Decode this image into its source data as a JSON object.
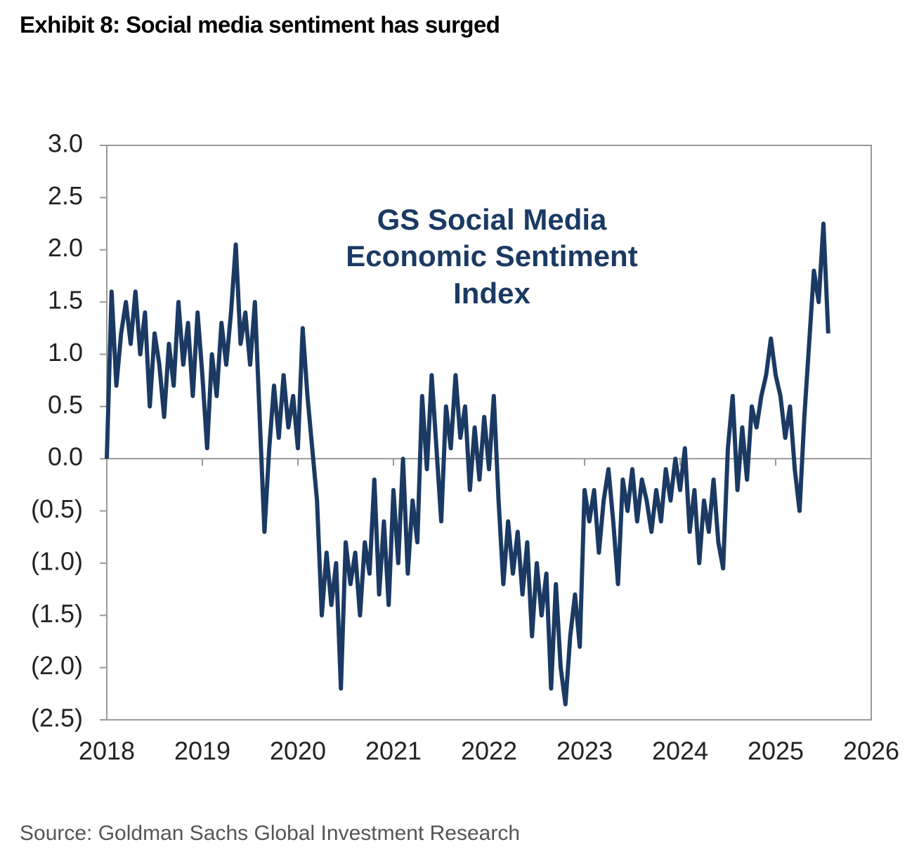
{
  "chart_data": {
    "type": "line",
    "title": "Exhibit 8: Social media sentiment has surged",
    "annotation": [
      "GS Social Media",
      "Economic Sentiment",
      "Index"
    ],
    "source": "Source: Goldman Sachs Global Investment Research",
    "color": "#1b3a63",
    "xlim": [
      2018,
      2026
    ],
    "xticks": [
      2018,
      2019,
      2020,
      2021,
      2022,
      2023,
      2024,
      2025,
      2026
    ],
    "ylim": [
      -2.5,
      3.0
    ],
    "yticks": [
      {
        "value": 3.0,
        "label": "3.0"
      },
      {
        "value": 2.5,
        "label": "2.5"
      },
      {
        "value": 2.0,
        "label": "2.0"
      },
      {
        "value": 1.5,
        "label": "1.5"
      },
      {
        "value": 1.0,
        "label": "1.0"
      },
      {
        "value": 0.5,
        "label": "0.5"
      },
      {
        "value": 0.0,
        "label": "0.0"
      },
      {
        "value": -0.5,
        "label": "(0.5)"
      },
      {
        "value": -1.0,
        "label": "(1.0)"
      },
      {
        "value": -1.5,
        "label": "(1.5)"
      },
      {
        "value": -2.0,
        "label": "(2.0)"
      },
      {
        "value": -2.5,
        "label": "(2.5)"
      }
    ],
    "x": [
      2018.0,
      2018.05,
      2018.1,
      2018.15,
      2018.2,
      2018.25,
      2018.3,
      2018.35,
      2018.4,
      2018.45,
      2018.5,
      2018.55,
      2018.6,
      2018.65,
      2018.7,
      2018.75,
      2018.8,
      2018.85,
      2018.9,
      2018.95,
      2019.0,
      2019.05,
      2019.1,
      2019.15,
      2019.2,
      2019.25,
      2019.3,
      2019.35,
      2019.4,
      2019.45,
      2019.5,
      2019.55,
      2019.6,
      2019.65,
      2019.7,
      2019.75,
      2019.8,
      2019.85,
      2019.9,
      2019.95,
      2020.0,
      2020.05,
      2020.1,
      2020.15,
      2020.2,
      2020.25,
      2020.3,
      2020.35,
      2020.4,
      2020.45,
      2020.5,
      2020.55,
      2020.6,
      2020.65,
      2020.7,
      2020.75,
      2020.8,
      2020.85,
      2020.9,
      2020.95,
      2021.0,
      2021.05,
      2021.1,
      2021.15,
      2021.2,
      2021.25,
      2021.3,
      2021.35,
      2021.4,
      2021.45,
      2021.5,
      2021.55,
      2021.6,
      2021.65,
      2021.7,
      2021.75,
      2021.8,
      2021.85,
      2021.9,
      2021.95,
      2022.0,
      2022.05,
      2022.1,
      2022.15,
      2022.2,
      2022.25,
      2022.3,
      2022.35,
      2022.4,
      2022.45,
      2022.5,
      2022.55,
      2022.6,
      2022.65,
      2022.7,
      2022.75,
      2022.8,
      2022.85,
      2022.9,
      2022.95,
      2023.0,
      2023.05,
      2023.1,
      2023.15,
      2023.2,
      2023.25,
      2023.3,
      2023.35,
      2023.4,
      2023.45,
      2023.5,
      2023.55,
      2023.6,
      2023.65,
      2023.7,
      2023.75,
      2023.8,
      2023.85,
      2023.9,
      2023.95,
      2024.0,
      2024.05,
      2024.1,
      2024.15,
      2024.2,
      2024.25,
      2024.3,
      2024.35,
      2024.4,
      2024.45,
      2024.5,
      2024.55,
      2024.6,
      2024.65,
      2024.7,
      2024.75,
      2024.8,
      2024.85,
      2024.9,
      2024.95,
      2025.0,
      2025.05,
      2025.1,
      2025.15,
      2025.2,
      2025.25,
      2025.3,
      2025.35,
      2025.4,
      2025.45,
      2025.5,
      2025.55
    ],
    "values": [
      0.0,
      1.6,
      0.7,
      1.2,
      1.5,
      1.1,
      1.6,
      1.0,
      1.4,
      0.5,
      1.2,
      0.9,
      0.4,
      1.1,
      0.7,
      1.5,
      0.9,
      1.3,
      0.6,
      1.4,
      0.8,
      0.1,
      1.0,
      0.6,
      1.3,
      0.9,
      1.4,
      2.05,
      1.1,
      1.4,
      0.9,
      1.5,
      0.4,
      -0.7,
      0.1,
      0.7,
      0.2,
      0.8,
      0.3,
      0.6,
      0.1,
      1.25,
      0.6,
      0.1,
      -0.4,
      -1.5,
      -0.9,
      -1.4,
      -1.0,
      -2.2,
      -0.8,
      -1.2,
      -0.9,
      -1.5,
      -0.8,
      -1.1,
      -0.2,
      -1.3,
      -0.6,
      -1.4,
      -0.3,
      -1.0,
      0.0,
      -1.1,
      -0.4,
      -0.8,
      0.6,
      -0.1,
      0.8,
      0.1,
      -0.6,
      0.5,
      0.1,
      0.8,
      0.2,
      0.5,
      -0.3,
      0.3,
      -0.2,
      0.4,
      -0.1,
      0.6,
      -0.4,
      -1.2,
      -0.6,
      -1.1,
      -0.7,
      -1.3,
      -0.8,
      -1.7,
      -1.0,
      -1.5,
      -1.1,
      -2.2,
      -1.2,
      -2.0,
      -2.35,
      -1.7,
      -1.3,
      -1.8,
      -0.3,
      -0.6,
      -0.3,
      -0.9,
      -0.4,
      -0.1,
      -0.6,
      -1.2,
      -0.2,
      -0.5,
      -0.1,
      -0.6,
      -0.2,
      -0.4,
      -0.7,
      -0.3,
      -0.6,
      -0.1,
      -0.4,
      0.0,
      -0.3,
      0.1,
      -0.7,
      -0.3,
      -1.0,
      -0.4,
      -0.7,
      -0.2,
      -0.8,
      -1.05,
      0.1,
      0.6,
      -0.3,
      0.3,
      -0.2,
      0.5,
      0.3,
      0.6,
      0.8,
      1.15,
      0.8,
      0.6,
      0.2,
      0.5,
      -0.1,
      -0.5,
      0.4,
      1.1,
      1.8,
      1.5,
      2.25,
      1.2
    ]
  }
}
